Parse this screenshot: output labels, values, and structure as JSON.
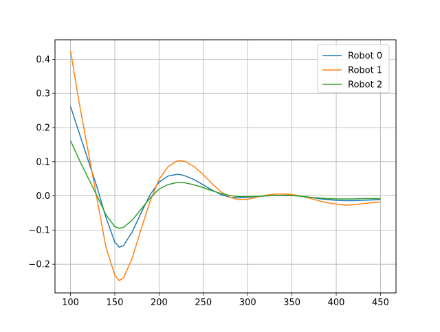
{
  "chart_data": {
    "type": "line",
    "title": "",
    "xlabel": "",
    "ylabel": "",
    "xlim": [
      82.5,
      467.5
    ],
    "ylim": [
      -0.284,
      0.457
    ],
    "xticks": [
      100,
      150,
      200,
      250,
      300,
      350,
      400,
      450
    ],
    "yticks": [
      -0.2,
      -0.1,
      0.0,
      0.1,
      0.2,
      0.3,
      0.4
    ],
    "xtick_labels": [
      "100",
      "150",
      "200",
      "250",
      "300",
      "350",
      "400",
      "450"
    ],
    "ytick_labels": [
      "−0.2",
      "−0.1",
      "0.0",
      "0.1",
      "0.2",
      "0.3",
      "0.4"
    ],
    "grid": true,
    "legend_position": "upper right",
    "series": [
      {
        "name": "Robot 0",
        "color": "#1f77b4",
        "x": [
          100,
          110,
          120,
          130,
          140,
          150,
          155,
          160,
          170,
          180,
          190,
          200,
          210,
          220,
          225,
          230,
          240,
          250,
          260,
          270,
          280,
          290,
          300,
          310,
          320,
          330,
          340,
          350,
          360,
          370,
          380,
          390,
          400,
          410,
          420,
          430,
          440,
          450
        ],
        "y": [
          0.262,
          0.183,
          0.104,
          0.025,
          -0.063,
          -0.135,
          -0.15,
          -0.145,
          -0.104,
          -0.048,
          0.004,
          0.04,
          0.058,
          0.063,
          0.062,
          0.058,
          0.047,
          0.032,
          0.017,
          0.004,
          -0.004,
          -0.006,
          -0.004,
          -0.002,
          0.0,
          0.001,
          0.002,
          0.002,
          0.0,
          -0.004,
          -0.008,
          -0.011,
          -0.013,
          -0.014,
          -0.014,
          -0.013,
          -0.012,
          -0.011
        ]
      },
      {
        "name": "Robot 1",
        "color": "#ff7f0e",
        "x": [
          100,
          110,
          120,
          130,
          140,
          150,
          155,
          160,
          170,
          180,
          190,
          200,
          210,
          220,
          225,
          230,
          240,
          250,
          260,
          270,
          280,
          290,
          300,
          310,
          320,
          330,
          340,
          350,
          360,
          370,
          380,
          390,
          400,
          410,
          420,
          430,
          440,
          450
        ],
        "y": [
          0.425,
          0.27,
          0.13,
          -0.01,
          -0.15,
          -0.232,
          -0.248,
          -0.24,
          -0.18,
          -0.095,
          -0.015,
          0.048,
          0.085,
          0.102,
          0.103,
          0.1,
          0.085,
          0.062,
          0.035,
          0.012,
          -0.004,
          -0.011,
          -0.01,
          -0.004,
          0.002,
          0.005,
          0.006,
          0.004,
          0.0,
          -0.007,
          -0.014,
          -0.02,
          -0.024,
          -0.027,
          -0.026,
          -0.023,
          -0.02,
          -0.018
        ]
      },
      {
        "name": "Robot 2",
        "color": "#2ca02c",
        "x": [
          100,
          110,
          120,
          130,
          140,
          150,
          155,
          160,
          170,
          180,
          190,
          200,
          210,
          220,
          225,
          230,
          240,
          250,
          260,
          270,
          280,
          290,
          300,
          310,
          320,
          330,
          340,
          350,
          360,
          370,
          380,
          390,
          400,
          410,
          420,
          430,
          440,
          450
        ],
        "y": [
          0.162,
          0.105,
          0.052,
          0.0,
          -0.055,
          -0.09,
          -0.095,
          -0.092,
          -0.07,
          -0.038,
          -0.006,
          0.02,
          0.033,
          0.039,
          0.039,
          0.038,
          0.032,
          0.024,
          0.015,
          0.007,
          0.001,
          -0.002,
          -0.002,
          -0.001,
          0.0,
          0.001,
          0.001,
          0.001,
          -0.001,
          -0.004,
          -0.006,
          -0.008,
          -0.009,
          -0.009,
          -0.009,
          -0.008,
          -0.008,
          -0.008
        ]
      }
    ]
  }
}
